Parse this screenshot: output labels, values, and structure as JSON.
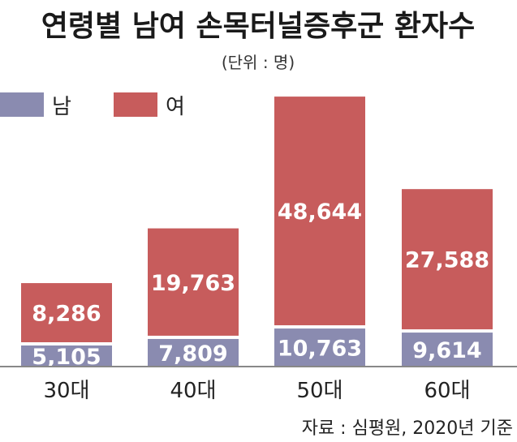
{
  "chart_data": {
    "type": "bar",
    "stacked": true,
    "title": "연령별 남여 손목터널증후군 환자수",
    "unit_label": "(단위 : 명)",
    "categories": [
      "30대",
      "40대",
      "50대",
      "60대"
    ],
    "series": [
      {
        "name": "남",
        "color": "#8a8bb0",
        "values": [
          5105,
          7809,
          10763,
          9614
        ],
        "labels": [
          "5,105",
          "7,809",
          "10,763",
          "9,614"
        ]
      },
      {
        "name": "여",
        "color": "#c75c5c",
        "values": [
          8286,
          19763,
          48644,
          27588
        ],
        "labels": [
          "8,286",
          "19,763",
          "48,644",
          "27,588"
        ]
      }
    ],
    "legend_position": "top-left",
    "source": "자료 : 심평원, 2020년 기준"
  }
}
